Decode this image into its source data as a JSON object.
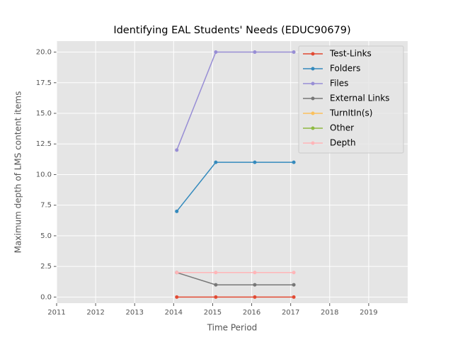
{
  "chart_data": {
    "type": "line",
    "title": "Identifying EAL Students' Needs (EDUC90679)",
    "x_label": "Time Period",
    "y_label": "Maximum depth of LMS content items",
    "x": [
      2014.08,
      2015.08,
      2016.08,
      2017.08
    ],
    "series": [
      {
        "name": "Test-Links",
        "color": "#E24A33",
        "values": [
          0,
          0,
          0,
          0
        ]
      },
      {
        "name": "Folders",
        "color": "#348ABD",
        "values": [
          7,
          11,
          11,
          11
        ]
      },
      {
        "name": "Files",
        "color": "#988ED5",
        "values": [
          12,
          20,
          20,
          20
        ]
      },
      {
        "name": "External Links",
        "color": "#777777",
        "values": [
          2,
          1,
          1,
          1
        ]
      },
      {
        "name": "TurnItIn(s)",
        "color": "#FBC15E",
        "values": [
          null,
          null,
          null,
          null
        ]
      },
      {
        "name": "Other",
        "color": "#8EBA42",
        "values": [
          null,
          null,
          null,
          null
        ]
      },
      {
        "name": "Depth",
        "color": "#FFB5B8",
        "values": [
          2,
          2,
          2,
          2
        ]
      }
    ],
    "xlim": [
      2011,
      2020
    ],
    "xticks": [
      2011,
      2012,
      2013,
      2014,
      2015,
      2016,
      2017,
      2018,
      2019
    ],
    "ylim": [
      -0.5,
      20.9
    ],
    "yticks": [
      {
        "value": 0,
        "label": "0.0"
      },
      {
        "value": 2.5,
        "label": "2.5"
      },
      {
        "value": 5,
        "label": "5.0"
      },
      {
        "value": 7.5,
        "label": "7.5"
      },
      {
        "value": 10,
        "label": "10.0"
      },
      {
        "value": 12.5,
        "label": "12.5"
      },
      {
        "value": 15,
        "label": "15.0"
      },
      {
        "value": 17.5,
        "label": "17.5"
      },
      {
        "value": 20,
        "label": "20.0"
      }
    ],
    "grid": true,
    "legend": "upper right"
  }
}
